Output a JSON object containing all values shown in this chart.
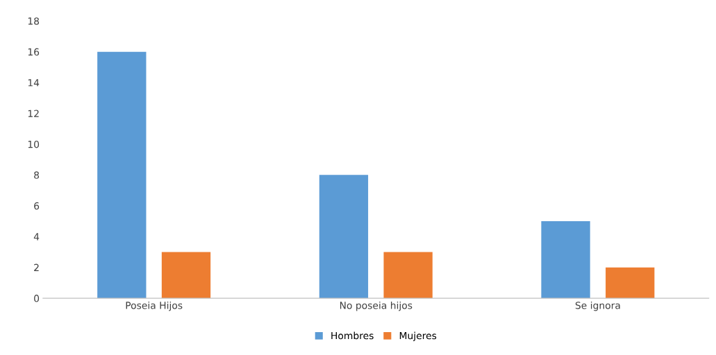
{
  "chart_data": {
    "type": "bar",
    "categories": [
      "Poseia Hijos",
      "No poseia hijos",
      "Se ignora"
    ],
    "series": [
      {
        "name": "Hombres",
        "color": "#5b9bd5",
        "values": [
          16,
          8,
          5
        ]
      },
      {
        "name": "Mujeres",
        "color": "#ed7d31",
        "values": [
          3,
          3,
          2
        ]
      }
    ],
    "ylim": [
      0,
      18
    ],
    "yticks": [
      0,
      2,
      4,
      6,
      8,
      10,
      12,
      14,
      16,
      18
    ],
    "grid": false,
    "legend": "bottom"
  }
}
